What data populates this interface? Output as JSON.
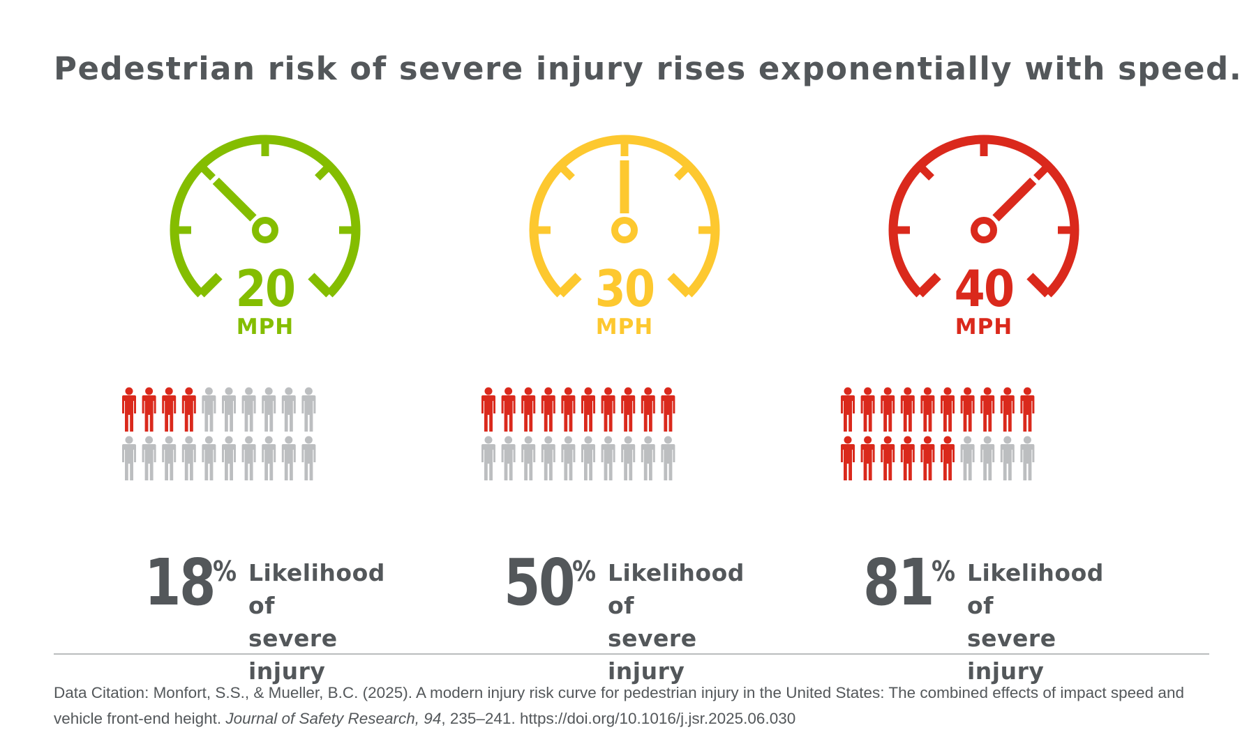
{
  "title": "Pedestrian risk of severe injury rises exponentially with speed.",
  "panels": [
    {
      "speed": "20",
      "unit": "MPH",
      "color": "#84bd00",
      "needle_angle_deg": -45,
      "people_total": 20,
      "people_highlighted": 4,
      "percent": "18",
      "percent_sign": "%",
      "label_line1": "Likelihood of",
      "label_line2": "severe injury"
    },
    {
      "speed": "30",
      "unit": "MPH",
      "color": "#fdc82f",
      "needle_angle_deg": 0,
      "people_total": 20,
      "people_highlighted": 10,
      "percent": "50",
      "percent_sign": "%",
      "label_line1": "Likelihood of",
      "label_line2": "severe injury"
    },
    {
      "speed": "40",
      "unit": "MPH",
      "color": "#da291c",
      "needle_angle_deg": 45,
      "people_total": 20,
      "people_highlighted": 16,
      "percent": "81",
      "percent_sign": "%",
      "label_line1": "Likelihood of",
      "label_line2": "severe injury"
    }
  ],
  "colors": {
    "person_highlight": "#da291c",
    "person_default": "#bcbec0",
    "text": "#53575a",
    "divider": "#b9bcbd"
  },
  "citation": {
    "part1": "Data Citation: Monfort, S.S., & Mueller, B.C. (2025). A modern injury risk curve for pedestrian injury in the United States: The combined effects of impact speed and vehicle front-end height. ",
    "journal": "Journal of Safety Research, 94",
    "part2": ", 235–241. https://doi.org/10.1016/j.jsr.2025.06.030"
  }
}
